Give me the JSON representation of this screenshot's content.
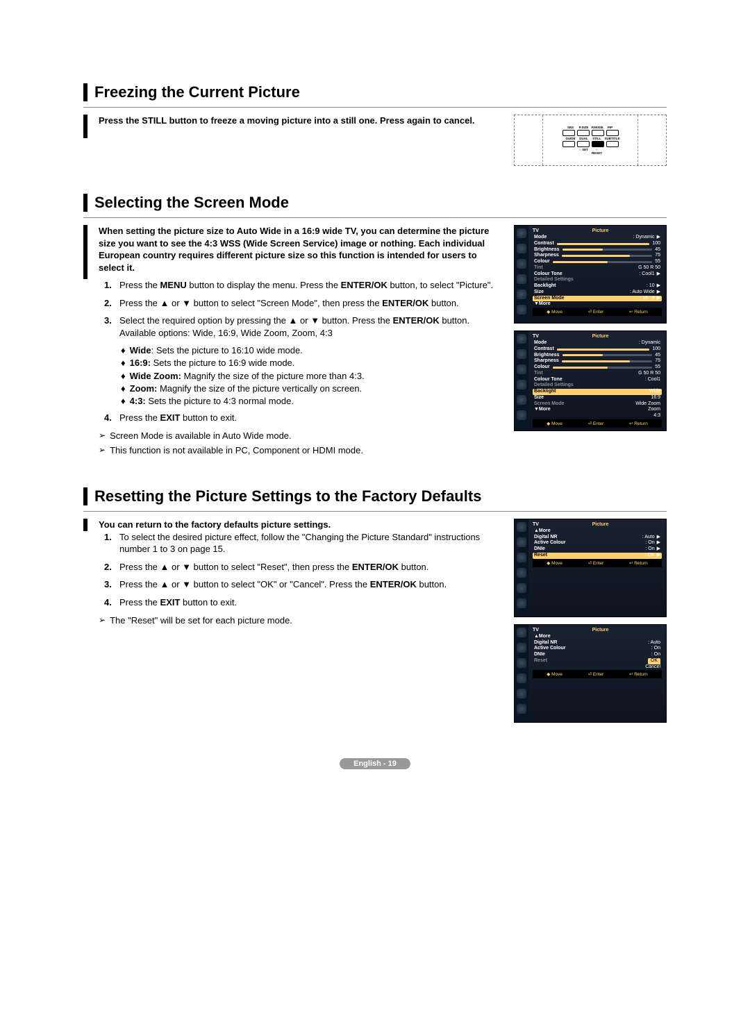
{
  "page_footer": "English - 19",
  "section1": {
    "title": "Freezing the Current Picture",
    "intro": "Press the STILL button to freeze a moving picture into a still one. Press again to cancel.",
    "remote": {
      "row1_labels": [
        "SRS",
        "P.SIZE",
        "P.MODE",
        "PIP"
      ],
      "row2_labels": [
        "GUIDE",
        "DUAL",
        "STILL",
        "SUBTITLE"
      ],
      "row3_labels": [
        "",
        "SET",
        "RESET",
        ""
      ]
    }
  },
  "section2": {
    "title": "Selecting the Screen Mode",
    "intro": "When setting the picture size to Auto Wide in a 16:9 wide TV, you can determine the picture size you want to see the 4:3 WSS (Wide Screen Service) image or nothing. Each individual European country requires different picture size so this function is intended for users to select it.",
    "steps": [
      "Press the <b>MENU</b> button to display the menu. Press the <b>ENTER/OK</b> button, to select \"Picture\".",
      "Press the ▲ or ▼ button to select \"Screen Mode\", then press the <b>ENTER/OK</b> button.",
      "Select the required option by pressing the ▲ or ▼ button. Press the <b>ENTER/OK</b> button.<br>Available options: Wide, 16:9, Wide Zoom, Zoom, 4:3",
      "Press the <b>EXIT</b> button to exit."
    ],
    "sub_bullets": [
      "<b>Wide</b>: Sets the picture to 16:10 wide mode.",
      "<b>16:9:</b> Sets the picture to 16:9 wide mode.",
      "<b>Wide Zoom:</b> Magnify the size of the picture more than 4:3.",
      "<b>Zoom:</b> Magnify the size of the picture vertically on screen.",
      "<b>4:3:</b> Sets the picture to 4:3 normal mode."
    ],
    "notes": [
      "Screen Mode is available in Auto Wide mode.",
      "This function is not available in PC, Component or HDMI mode."
    ],
    "osd1": {
      "tv": "TV",
      "title": "Picture",
      "rows": [
        {
          "label": "Mode",
          "value": ": Dynamic",
          "arrow": true
        },
        {
          "label": "Contrast",
          "slider": 100,
          "value": "100"
        },
        {
          "label": "Brightness",
          "slider": 45,
          "value": "45"
        },
        {
          "label": "Sharpness",
          "slider": 75,
          "value": "75"
        },
        {
          "label": "Colour",
          "slider": 55,
          "value": "55"
        },
        {
          "label": "Tint",
          "dim": true,
          "value": "G 50          R 50"
        },
        {
          "label": "Colour Tone",
          "value": ": Cool1",
          "arrow": true
        },
        {
          "label": "Detailed Settings",
          "dim": true,
          "arrow": true
        },
        {
          "label": "Backlight",
          "value": ": 10",
          "arrow": true
        },
        {
          "label": "Size",
          "value": ": Auto Wide",
          "arrow": true
        },
        {
          "label": "Screen Mode",
          "value": ": 16 : 9",
          "hl": true,
          "arrow": true
        },
        {
          "label": "▼More"
        }
      ],
      "footer": [
        "◆ Move",
        "⏎ Enter",
        "↩ Return"
      ]
    },
    "osd2": {
      "tv": "TV",
      "title": "Picture",
      "rows": [
        {
          "label": "Mode",
          "value": ": Dynamic"
        },
        {
          "label": "Contrast",
          "slider": 100,
          "value": "100"
        },
        {
          "label": "Brightness",
          "slider": 45,
          "value": "45"
        },
        {
          "label": "Sharpness",
          "slider": 75,
          "value": "75"
        },
        {
          "label": "Colour",
          "slider": 55,
          "value": "55"
        },
        {
          "label": "Tint",
          "dim": true,
          "value": "G 50          R 50"
        },
        {
          "label": "Colour Tone",
          "value": ": Cool1"
        },
        {
          "label": "Detailed Settings",
          "dim": true
        },
        {
          "label": "Backlight",
          "value": "Wide",
          "hl": true
        },
        {
          "label": "Size",
          "value": "16:9"
        },
        {
          "label": "Screen Mode",
          "dim": true,
          "value": "Wide Zoom"
        },
        {
          "label": "▼More",
          "value": "Zoom"
        },
        {
          "label": "",
          "value": "4:3"
        }
      ],
      "footer": [
        "◆ Move",
        "⏎ Enter",
        "↩ Return"
      ]
    }
  },
  "section3": {
    "title": "Resetting the Picture Settings to the Factory Defaults",
    "intro": "You can return to the factory defaults picture settings.",
    "steps": [
      "To select the desired picture effect, follow the \"Changing the Picture Standard\" instructions number 1 to 3 on page 15.",
      "Press the ▲ or ▼ button to select \"Reset\", then press the <b>ENTER/OK</b> button.",
      "Press the ▲ or ▼ button to select \"OK\" or \"Cancel\". Press the <b>ENTER/OK</b> button.",
      "Press the <b>EXIT</b> button to exit."
    ],
    "notes": [
      "The \"Reset\" will be set for each picture mode."
    ],
    "osd1": {
      "tv": "TV",
      "title": "Picture",
      "rows": [
        {
          "label": "▲More"
        },
        {
          "label": "Digital NR",
          "value": ": Auto",
          "arrow": true
        },
        {
          "label": "Active Colour",
          "value": ": On",
          "arrow": true
        },
        {
          "label": "DNIe",
          "value": ": On",
          "arrow": true
        },
        {
          "label": "Reset",
          "value": ": OK",
          "hl": true,
          "arrow": true
        }
      ],
      "footer": [
        "◆ Move",
        "⏎ Enter",
        "↩ Return"
      ]
    },
    "osd2": {
      "tv": "TV",
      "title": "Picture",
      "rows": [
        {
          "label": "▲More"
        },
        {
          "label": "Digital NR",
          "value": ": Auto"
        },
        {
          "label": "Active Colour",
          "value": ": On"
        },
        {
          "label": "DNIe",
          "value": ": On"
        },
        {
          "label": "Reset",
          "value": "OK",
          "dim": true,
          "hl_val": true
        },
        {
          "label": "",
          "value": "Cancel"
        }
      ],
      "footer": [
        "◆ Move",
        "⏎ Enter",
        "↩ Return"
      ]
    }
  }
}
